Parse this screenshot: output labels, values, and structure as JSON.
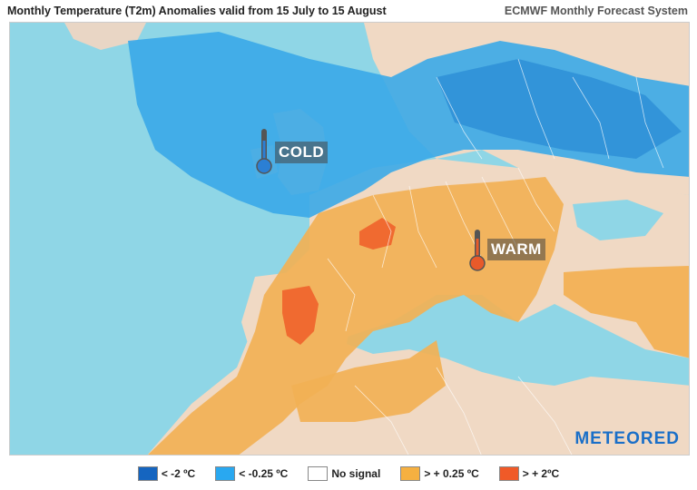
{
  "header": {
    "title": "Monthly Temperature (T2m) Anomalies valid from 15 July to 15 August",
    "source": "ECMWF Monthly Forecast System"
  },
  "map": {
    "labels": {
      "cold": "COLD",
      "warm": "WARM"
    },
    "brand": "METEORED",
    "colors": {
      "sea": "#8fd6e6",
      "land": "#f0d9c4",
      "cold_strong": "#1e7fd0",
      "cold": "#3aa8e8",
      "warm": "#f2b155",
      "warm_strong": "#f06a30"
    }
  },
  "legend": [
    {
      "label": "< -2 ºC",
      "color": "#1565c0"
    },
    {
      "label": "< -0.25 ºC",
      "color": "#29a8f0"
    },
    {
      "label": "No signal",
      "color": "#ffffff"
    },
    {
      "label": "> + 0.25 ºC",
      "color": "#f5b041"
    },
    {
      "label": "> + 2ºC",
      "color": "#f05a28"
    }
  ]
}
